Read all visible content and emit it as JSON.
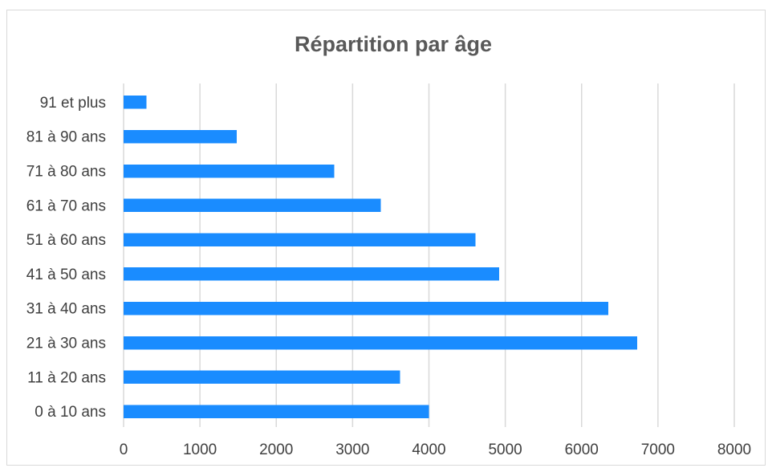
{
  "chart_data": {
    "type": "bar",
    "orientation": "horizontal",
    "title": "Répartition par âge",
    "categories": [
      "0 à 10 ans",
      "11 à 20 ans",
      "21 à 30 ans",
      "31 à 40 ans",
      "41 à 50 ans",
      "51 à 60 ans",
      "61 à 70 ans",
      "71 à 80 ans",
      "81 à 90 ans",
      "91 et plus"
    ],
    "values": [
      4000,
      3620,
      6730,
      6350,
      4920,
      4610,
      3370,
      2760,
      1480,
      300
    ],
    "xlim": [
      0,
      8000
    ],
    "xticks": [
      "0",
      "1000",
      "2000",
      "3000",
      "4000",
      "5000",
      "6000",
      "7000",
      "8000"
    ],
    "xlabel": "",
    "ylabel": "",
    "grid": true,
    "legend": "none",
    "colors": {
      "bar": "#1a8cff",
      "grid": "#d9d9d9",
      "text": "#404040",
      "title": "#595959"
    }
  }
}
